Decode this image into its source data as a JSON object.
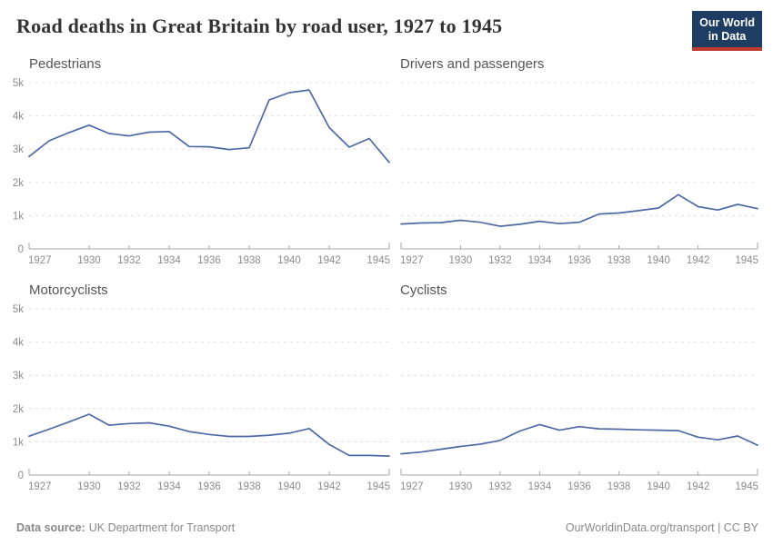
{
  "header": {
    "title": "Road deaths in Great Britain by road user, 1927 to 1945",
    "logo": {
      "line1": "Our World",
      "line2": "in Data",
      "bg_color": "#1d3d63",
      "accent_color": "#bf3b31"
    }
  },
  "footer": {
    "source_label": "Data source:",
    "source_value": "UK Department for Transport",
    "attribution_link": "OurWorldinData.org/transport",
    "attribution_separator": " | ",
    "attribution_license": "CC BY"
  },
  "style": {
    "line_color": "#4d6aa5",
    "grid_color": "#e0e0e0",
    "axis_color": "#a5a5a5",
    "tick_label_color": "#8c8c8c",
    "facet_title_color": "#555555"
  },
  "chart_data": [
    {
      "type": "line",
      "title": "Pedestrians",
      "x": [
        1927,
        1928,
        1929,
        1930,
        1931,
        1932,
        1933,
        1934,
        1935,
        1936,
        1937,
        1938,
        1939,
        1940,
        1941,
        1942,
        1943,
        1944,
        1945
      ],
      "values": [
        2780,
        3250,
        3500,
        3720,
        3470,
        3400,
        3510,
        3530,
        3080,
        3070,
        2990,
        3040,
        4480,
        4700,
        4780,
        3650,
        3060,
        3320,
        2600
      ],
      "x_tick_labels": [
        "1927",
        "1930",
        "1932",
        "1934",
        "1936",
        "1938",
        "1940",
        "1942",
        "1945"
      ],
      "y_tick_labels": [
        "0",
        "1k",
        "2k",
        "3k",
        "4k",
        "5k"
      ],
      "ylim": [
        0,
        5000
      ],
      "grid": true,
      "show_y_labels": true
    },
    {
      "type": "line",
      "title": "Drivers and passengers",
      "x": [
        1927,
        1928,
        1929,
        1930,
        1931,
        1932,
        1933,
        1934,
        1935,
        1936,
        1937,
        1938,
        1939,
        1940,
        1941,
        1942,
        1943,
        1944,
        1945
      ],
      "values": [
        750,
        780,
        790,
        860,
        800,
        680,
        740,
        830,
        760,
        800,
        1050,
        1080,
        1150,
        1230,
        1630,
        1270,
        1170,
        1340,
        1210
      ],
      "x_tick_labels": [
        "1927",
        "1930",
        "1932",
        "1934",
        "1936",
        "1938",
        "1940",
        "1942",
        "1945"
      ],
      "y_tick_labels": [
        "0",
        "1k",
        "2k",
        "3k",
        "4k",
        "5k"
      ],
      "ylim": [
        0,
        5000
      ],
      "grid": true,
      "show_y_labels": false
    },
    {
      "type": "line",
      "title": "Motorcyclists",
      "x": [
        1927,
        1928,
        1929,
        1930,
        1931,
        1932,
        1933,
        1934,
        1935,
        1936,
        1937,
        1938,
        1939,
        1940,
        1941,
        1942,
        1943,
        1944,
        1945
      ],
      "values": [
        1170,
        1380,
        1600,
        1830,
        1500,
        1550,
        1570,
        1470,
        1310,
        1220,
        1160,
        1160,
        1200,
        1260,
        1400,
        920,
        590,
        590,
        570
      ],
      "x_tick_labels": [
        "1927",
        "1930",
        "1932",
        "1934",
        "1936",
        "1938",
        "1940",
        "1942",
        "1945"
      ],
      "y_tick_labels": [
        "0",
        "1k",
        "2k",
        "3k",
        "4k",
        "5k"
      ],
      "ylim": [
        0,
        5000
      ],
      "grid": true,
      "show_y_labels": true
    },
    {
      "type": "line",
      "title": "Cyclists",
      "x": [
        1927,
        1928,
        1929,
        1930,
        1931,
        1932,
        1933,
        1934,
        1935,
        1936,
        1937,
        1938,
        1939,
        1940,
        1941,
        1942,
        1943,
        1944,
        1945
      ],
      "values": [
        640,
        690,
        775,
        860,
        930,
        1040,
        1325,
        1520,
        1350,
        1455,
        1390,
        1380,
        1360,
        1350,
        1335,
        1140,
        1060,
        1175,
        900
      ],
      "x_tick_labels": [
        "1927",
        "1930",
        "1932",
        "1934",
        "1936",
        "1938",
        "1940",
        "1942",
        "1945"
      ],
      "y_tick_labels": [
        "0",
        "1k",
        "2k",
        "3k",
        "4k",
        "5k"
      ],
      "ylim": [
        0,
        5000
      ],
      "grid": true,
      "show_y_labels": false
    }
  ]
}
